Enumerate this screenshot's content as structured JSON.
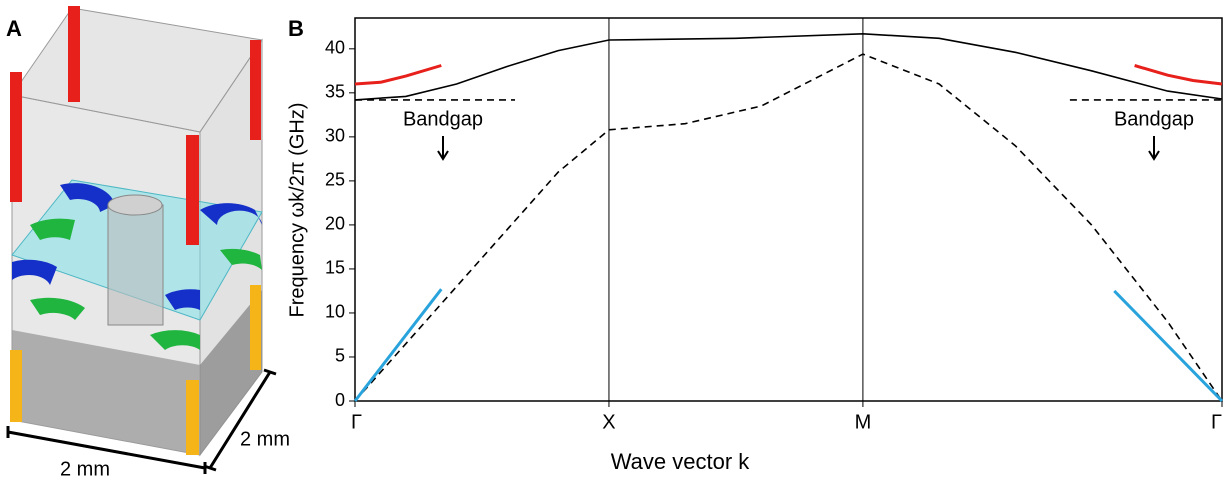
{
  "panel_a": {
    "label": "A",
    "dim_front": "2 mm",
    "dim_side": "2 mm"
  },
  "chart_data": {
    "type": "line",
    "panel_label": "B",
    "x_label": "Wave vector k",
    "y_label": "Frequency ωk/2π (GHz)",
    "xlim": [
      0,
      3.414
    ],
    "ylim": [
      0,
      43.5
    ],
    "xticks": [
      {
        "value": 0,
        "label": "Γ"
      },
      {
        "value": 1,
        "label": "X"
      },
      {
        "value": 2,
        "label": "M"
      },
      {
        "value": 3.414,
        "label": "Γ"
      }
    ],
    "yticks": [
      0,
      5,
      10,
      15,
      20,
      25,
      30,
      35,
      40
    ],
    "vlines": [
      1,
      2
    ],
    "annotations": [
      "Bandgap",
      "Bandgap"
    ],
    "series": [
      {
        "color": "#000000",
        "style": "solid",
        "x": [
          0,
          0.2,
          0.4,
          0.6,
          0.8,
          1,
          1.5,
          2,
          2.3,
          2.6,
          2.9,
          3.2,
          3.414
        ],
        "values": [
          34.2,
          34.6,
          36,
          38,
          39.8,
          41,
          41.2,
          41.7,
          41.2,
          39.6,
          37.5,
          35.2,
          34.3
        ]
      },
      {
        "color": "#000000",
        "style": "dashed",
        "x": [
          0,
          0.2,
          0.4,
          0.6,
          0.8,
          1,
          1.3,
          1.6,
          2,
          2.3,
          2.6,
          2.9,
          3.2,
          3.414
        ],
        "values": [
          0,
          6.5,
          13,
          19.5,
          26,
          30.8,
          31.5,
          33.5,
          39.4,
          36,
          29,
          20,
          9,
          0
        ]
      },
      {
        "color": "#e8201c",
        "style": "thick",
        "x": [
          0,
          0.1,
          0.2,
          0.34
        ],
        "values": [
          36,
          36.2,
          36.9,
          38.1
        ]
      },
      {
        "color": "#e8201c",
        "style": "thick",
        "x": [
          3.07,
          3.2,
          3.3,
          3.414
        ],
        "values": [
          38.1,
          37,
          36.4,
          36
        ]
      },
      {
        "color": "#29a3dc",
        "style": "thick",
        "x": [
          0,
          0.34
        ],
        "values": [
          0,
          12.7
        ]
      },
      {
        "color": "#29a3dc",
        "style": "thick",
        "x": [
          2.99,
          3.414
        ],
        "values": [
          12.5,
          0
        ]
      },
      {
        "color": "#000000",
        "style": "dashed",
        "x": [
          0,
          0.63
        ],
        "values": [
          34.2,
          34.2
        ]
      },
      {
        "color": "#000000",
        "style": "dashed",
        "x": [
          2.815,
          3.414
        ],
        "values": [
          34.2,
          34.2
        ]
      }
    ]
  }
}
